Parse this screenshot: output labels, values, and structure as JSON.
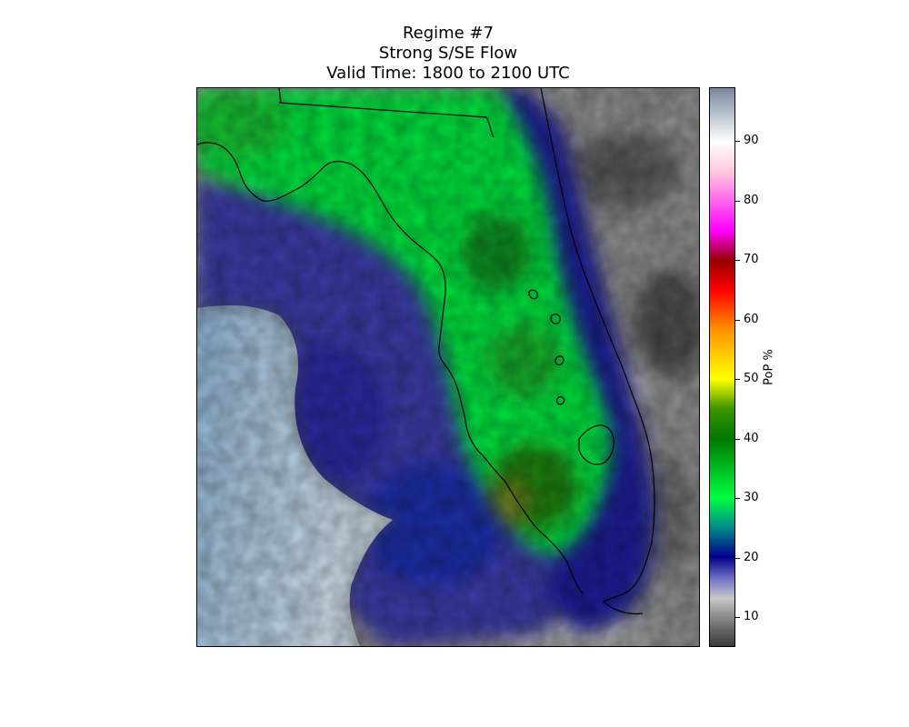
{
  "title": {
    "line1": "Regime #7",
    "line2": "Strong S/SE Flow",
    "line3": "Valid Time: 1800 to 2100 UTC"
  },
  "colorbar": {
    "label": "PoP %",
    "min": 5,
    "max": 99,
    "ticks": [
      {
        "value": 10,
        "label": "10"
      },
      {
        "value": 20,
        "label": "20"
      },
      {
        "value": 30,
        "label": "30"
      },
      {
        "value": 40,
        "label": "40"
      },
      {
        "value": 50,
        "label": "50"
      },
      {
        "value": 60,
        "label": "60"
      },
      {
        "value": 70,
        "label": "70"
      },
      {
        "value": 80,
        "label": "80"
      },
      {
        "value": 90,
        "label": "90"
      }
    ],
    "stops": [
      {
        "value": 5,
        "color": "#3a3a3a"
      },
      {
        "value": 10,
        "color": "#8a8a8a"
      },
      {
        "value": 13,
        "color": "#c8c8c8"
      },
      {
        "value": 16,
        "color": "#7c7cc8"
      },
      {
        "value": 20,
        "color": "#00008c"
      },
      {
        "value": 25,
        "color": "#008c8c"
      },
      {
        "value": 30,
        "color": "#00ff40"
      },
      {
        "value": 40,
        "color": "#007800"
      },
      {
        "value": 45,
        "color": "#3c9600"
      },
      {
        "value": 50,
        "color": "#ffff00"
      },
      {
        "value": 58,
        "color": "#ff9600"
      },
      {
        "value": 65,
        "color": "#ff0000"
      },
      {
        "value": 70,
        "color": "#960000"
      },
      {
        "value": 75,
        "color": "#ff00ff"
      },
      {
        "value": 85,
        "color": "#ffc8dc"
      },
      {
        "value": 90,
        "color": "#ffffff"
      },
      {
        "value": 99,
        "color": "#7888a0"
      }
    ]
  },
  "colors": {
    "gulf_water": "#9fbfda",
    "high_pop": "#00e03a",
    "peak_pop": "#1f7a00",
    "low_pop": "#000090",
    "ocean_pop": "#8a8a8a",
    "coastline": "#000000"
  }
}
